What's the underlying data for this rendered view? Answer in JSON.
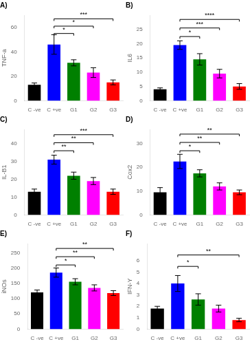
{
  "chart_data": [
    {
      "type": "bar",
      "title": "A)",
      "ylabel": "TNF-a",
      "categories": [
        "C -ve",
        "C +ve",
        "G1",
        "G2",
        "G3"
      ],
      "values": [
        13,
        46,
        31,
        23,
        15
      ],
      "errors": [
        1.5,
        8,
        2.5,
        4,
        2
      ],
      "colors": [
        "#000000",
        "#0000FF",
        "#008000",
        "#FF00FF",
        "#FF0000"
      ],
      "ylim": [
        0,
        70
      ],
      "yticks": [
        0,
        20,
        40,
        60
      ],
      "grid": false,
      "significance": [
        {
          "from": "C +ve",
          "to": "G1",
          "y": 55,
          "label": "*"
        },
        {
          "from": "C +ve",
          "to": "G2",
          "y": 61,
          "label": "*"
        },
        {
          "from": "C +ve",
          "to": "G3",
          "y": 67,
          "label": "***"
        }
      ]
    },
    {
      "type": "bar",
      "title": "B)",
      "ylabel": "IL6",
      "categories": [
        "C -ve",
        "C +ve",
        "G1",
        "G2",
        "G3"
      ],
      "values": [
        4,
        19.5,
        14.5,
        9.5,
        5
      ],
      "errors": [
        0.5,
        1.5,
        2,
        1.5,
        1
      ],
      "colors": [
        "#000000",
        "#0000FF",
        "#008000",
        "#FF00FF",
        "#FF0000"
      ],
      "ylim": [
        0,
        30
      ],
      "yticks": [
        0,
        5,
        10,
        15,
        20,
        25
      ],
      "grid": false,
      "significance": [
        {
          "from": "C +ve",
          "to": "G1",
          "y": 22.5,
          "label": "*"
        },
        {
          "from": "C +ve",
          "to": "G2",
          "y": 25.5,
          "label": "***"
        },
        {
          "from": "C +ve",
          "to": "G3",
          "y": 28.5,
          "label": "****"
        }
      ]
    },
    {
      "type": "bar",
      "title": "C)",
      "ylabel": "IL-B1",
      "categories": [
        "C -ve",
        "C +ve",
        "G1",
        "G2",
        "G3"
      ],
      "values": [
        13,
        31,
        22,
        19,
        13
      ],
      "errors": [
        1.5,
        2.5,
        2,
        2,
        1.5
      ],
      "colors": [
        "#000000",
        "#0000FF",
        "#008000",
        "#FF00FF",
        "#FF0000"
      ],
      "ylim": [
        0,
        48
      ],
      "yticks": [
        0,
        10,
        20,
        30,
        40
      ],
      "grid": false,
      "significance": [
        {
          "from": "C +ve",
          "to": "G1",
          "y": 36,
          "label": "**"
        },
        {
          "from": "C +ve",
          "to": "G2",
          "y": 40.5,
          "label": "**"
        },
        {
          "from": "C +ve",
          "to": "G3",
          "y": 45,
          "label": "***"
        }
      ]
    },
    {
      "type": "bar",
      "title": "D)",
      "ylabel": "Cox2",
      "categories": [
        "C -ve",
        "C +ve",
        "G1",
        "G2",
        "G3"
      ],
      "values": [
        9.5,
        22.5,
        17.5,
        12,
        9.5
      ],
      "errors": [
        2,
        3,
        1.5,
        1.5,
        1
      ],
      "colors": [
        "#000000",
        "#0000FF",
        "#008000",
        "#FF00FF",
        "#FF0000"
      ],
      "ylim": [
        0,
        36
      ],
      "yticks": [
        0,
        10,
        20,
        30
      ],
      "grid": false,
      "significance": [
        {
          "from": "C +ve",
          "to": "G1",
          "y": 27,
          "label": "*"
        },
        {
          "from": "C +ve",
          "to": "G2",
          "y": 30.5,
          "label": "**"
        },
        {
          "from": "C +ve",
          "to": "G3",
          "y": 34,
          "label": "**"
        }
      ]
    },
    {
      "type": "bar",
      "title": "E)",
      "ylabel": "iNOs",
      "categories": [
        "C -ve",
        "C +ve",
        "G1",
        "G2",
        "G3"
      ],
      "values": [
        120,
        185,
        155,
        135,
        118
      ],
      "errors": [
        8,
        15,
        10,
        10,
        8
      ],
      "colors": [
        "#000000",
        "#0000FF",
        "#008000",
        "#FF00FF",
        "#FF0000"
      ],
      "ylim": [
        0,
        280
      ],
      "yticks": [
        0,
        50,
        100,
        150,
        200,
        250
      ],
      "grid": false,
      "significance": [
        {
          "from": "C +ve",
          "to": "G1",
          "y": 210,
          "label": "*"
        },
        {
          "from": "C +ve",
          "to": "G2",
          "y": 237,
          "label": "**"
        },
        {
          "from": "C +ve",
          "to": "G3",
          "y": 264,
          "label": "**"
        }
      ]
    },
    {
      "type": "bar",
      "title": "F)",
      "ylabel": "IFN-Y",
      "categories": [
        "C -ve",
        "C +ve",
        "G1",
        "G2",
        "G3"
      ],
      "values": [
        1.8,
        4.0,
        2.6,
        1.8,
        0.8
      ],
      "errors": [
        0.2,
        0.7,
        0.5,
        0.3,
        0.15
      ],
      "colors": [
        "#000000",
        "#0000FF",
        "#008000",
        "#FF00FF",
        "#FF0000"
      ],
      "ylim": [
        0,
        7.5
      ],
      "yticks": [
        0,
        1,
        2,
        3,
        4,
        5,
        6
      ],
      "grid": false,
      "significance": [
        {
          "from": "C +ve",
          "to": "G1",
          "y": 5.5,
          "label": "*"
        },
        {
          "from": "C +ve",
          "to": "G3",
          "y": 6.5,
          "label": "**"
        }
      ]
    }
  ]
}
